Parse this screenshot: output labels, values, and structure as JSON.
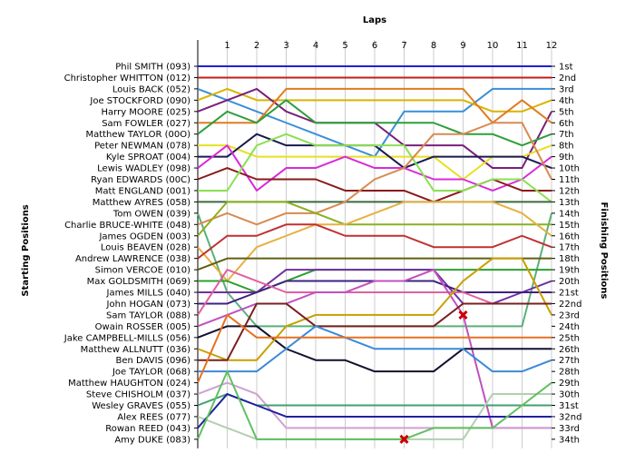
{
  "chart_data": {
    "type": "line",
    "title": "",
    "xlabel": "Laps",
    "ylabel_left": "Starting Positions",
    "ylabel_right": "Finishing Positions",
    "laps": [
      1,
      2,
      3,
      4,
      5,
      6,
      7,
      8,
      9,
      10,
      11,
      12
    ],
    "drivers": [
      "Phil SMITH (093)",
      "Christopher WHITTON (012)",
      "Louis BACK (052)",
      "Joe STOCKFORD (090)",
      "Harry MOORE (025)",
      "Sam FOWLER (027)",
      "Matthew TAYLOR (00O)",
      "Peter NEWMAN (078)",
      "Kyle SPROAT (004)",
      "Lewis WADLEY (098)",
      "Ryan EDWARDS (00C)",
      "Matt ENGLAND (001)",
      "Matthew AYRES (058)",
      "Tom OWEN (039)",
      "Charlie BRUCE-WHITE (048)",
      "James OGDEN (003)",
      "Louis BEAVEN (028)",
      "Andrew LAWRENCE (038)",
      "Simon VERCOE (010)",
      "Max GOLDSMITH (069)",
      "James MILLS (040)",
      "John HOGAN (073)",
      "Sam TAYLOR (088)",
      "Owain ROSSER (005)",
      "Jake CAMPBELL-MILLS (056)",
      "Matthew ALLNUTT (036)",
      "Ben DAVIS (096)",
      "Joe TAYLOR (068)",
      "Matthew HAUGHTON (024)",
      "Steve CHISHOLM (037)",
      "Wesley GRAVES (055)",
      "Alex REES (077)",
      "Rowan REED (043)",
      "Amy DUKE (083)"
    ],
    "finishing_labels": [
      "1st",
      "2nd",
      "3rd",
      "4th",
      "5th",
      "6th",
      "7th",
      "8th",
      "9th",
      "10th",
      "11th",
      "12th",
      "13th",
      "14th",
      "15th",
      "16th",
      "17th",
      "18th",
      "19th",
      "20th",
      "21st",
      "22nd",
      "23rd",
      "24th",
      "25th",
      "26th",
      "27th",
      "28th",
      "29th",
      "30th",
      "31st",
      "32nd",
      "33rd",
      "34th"
    ],
    "series": [
      {
        "color": "#1f1fd6",
        "positions": [
          1,
          1,
          1,
          1,
          1,
          1,
          1,
          1,
          1,
          1,
          1,
          1,
          1
        ]
      },
      {
        "color": "#c41a1a",
        "positions": [
          2,
          2,
          2,
          2,
          2,
          2,
          2,
          2,
          2,
          2,
          2,
          2,
          2
        ]
      },
      {
        "color": "#3a8fd8",
        "positions": [
          3,
          4,
          5,
          6,
          7,
          8,
          9,
          5,
          5,
          5,
          3,
          3,
          3
        ]
      },
      {
        "color": "#d9b400",
        "positions": [
          4,
          3,
          4,
          4,
          4,
          4,
          4,
          4,
          4,
          4,
          5,
          5,
          4
        ]
      },
      {
        "color": "#7a1f7a",
        "positions": [
          5,
          4,
          3,
          5,
          6,
          6,
          6,
          8,
          8,
          8,
          10,
          10,
          5
        ]
      },
      {
        "color": "#e07b1f",
        "positions": [
          6,
          6,
          6,
          3,
          3,
          3,
          3,
          3,
          3,
          3,
          6,
          4,
          6
        ]
      },
      {
        "color": "#2e9e3c",
        "positions": [
          7,
          5,
          6,
          4,
          6,
          6,
          6,
          6,
          6,
          7,
          7,
          8,
          7
        ]
      },
      {
        "color": "#e8e020",
        "positions": [
          8,
          8,
          9,
          9,
          9,
          9,
          9,
          9,
          9,
          11,
          9,
          9,
          8
        ]
      },
      {
        "color": "#1a1a50",
        "positions": [
          9,
          9,
          7,
          8,
          8,
          8,
          8,
          10,
          9,
          9,
          9,
          9,
          10
        ]
      },
      {
        "color": "#d82bd8",
        "positions": [
          10,
          8,
          12,
          10,
          10,
          9,
          10,
          10,
          11,
          11,
          12,
          11,
          9
        ]
      },
      {
        "color": "#8a1a1a",
        "positions": [
          11,
          10,
          11,
          11,
          11,
          12,
          12,
          12,
          13,
          12,
          11,
          12,
          12
        ]
      },
      {
        "color": "#8ae050",
        "positions": [
          12,
          12,
          8,
          7,
          8,
          8,
          8,
          8,
          12,
          12,
          11,
          11,
          13
        ]
      },
      {
        "color": "#3b6b3b",
        "positions": [
          13,
          13,
          13,
          13,
          13,
          13,
          13,
          13,
          13,
          13,
          13,
          13,
          13
        ]
      },
      {
        "color": "#5ab07a",
        "positions": [
          14,
          21,
          24,
          24,
          24,
          24,
          24,
          24,
          24,
          24,
          24,
          24,
          14
        ]
      },
      {
        "color": "#d88a50",
        "positions": [
          15,
          14,
          15,
          14,
          14,
          13,
          11,
          10,
          7,
          7,
          6,
          6,
          11
        ]
      },
      {
        "color": "#8ab020",
        "positions": [
          16,
          13,
          13,
          13,
          14,
          15,
          15,
          15,
          15,
          15,
          15,
          15,
          15
        ]
      },
      {
        "color": "#e8b040",
        "positions": [
          17,
          20,
          17,
          16,
          15,
          15,
          14,
          13,
          13,
          13,
          13,
          14,
          16
        ]
      },
      {
        "color": "#c03030",
        "positions": [
          18,
          16,
          16,
          15,
          15,
          16,
          16,
          16,
          17,
          17,
          17,
          16,
          17
        ]
      },
      {
        "color": "#606010",
        "positions": [
          19,
          18,
          18,
          18,
          18,
          18,
          18,
          18,
          18,
          18,
          18,
          18,
          18
        ]
      },
      {
        "color": "#2ca02c",
        "positions": [
          20,
          20,
          21,
          20,
          19,
          19,
          19,
          19,
          19,
          19,
          19,
          19,
          19
        ]
      },
      {
        "color": "#7030a0",
        "positions": [
          21,
          21,
          21,
          19,
          19,
          19,
          19,
          19,
          19,
          22,
          22,
          21,
          20
        ]
      },
      {
        "color": "#402080",
        "positions": [
          22,
          22,
          21,
          20,
          20,
          20,
          20,
          20,
          20,
          21,
          21,
          21,
          21
        ]
      },
      {
        "color": "#e060a0",
        "positions": [
          23,
          19,
          20,
          21,
          21,
          21,
          21,
          21,
          21,
          21,
          22,
          22,
          22
        ]
      },
      {
        "color": "#c050c0",
        "positions": [
          24,
          23,
          22,
          22,
          21,
          21,
          20,
          20,
          19,
          23,
          33,
          33,
          33
        ]
      },
      {
        "color": "#101030",
        "positions": [
          25,
          24,
          24,
          26,
          27,
          27,
          28,
          28,
          28,
          26,
          26,
          26,
          26
        ]
      },
      {
        "color": "#c8a000",
        "positions": [
          26,
          27,
          27,
          24,
          23,
          23,
          23,
          23,
          23,
          20,
          18,
          18,
          23
        ]
      },
      {
        "color": "#7a2020",
        "positions": [
          27,
          27,
          22,
          22,
          24,
          24,
          24,
          24,
          24,
          22,
          22,
          22,
          22
        ]
      },
      {
        "color": "#3a8ad8",
        "positions": [
          28,
          28,
          28,
          26,
          24,
          25,
          26,
          26,
          26,
          26,
          28,
          28,
          27
        ]
      },
      {
        "color": "#e87020",
        "positions": [
          29,
          23,
          25,
          25,
          25,
          25,
          25,
          25,
          25,
          25,
          25,
          25,
          25
        ]
      },
      {
        "color": "#d0a0d0",
        "positions": [
          30,
          29,
          30,
          33,
          33,
          33,
          33,
          33,
          33,
          33,
          33,
          33,
          33
        ]
      },
      {
        "color": "#40a070",
        "positions": [
          31,
          30,
          31,
          31,
          31,
          31,
          31,
          31,
          31,
          31,
          31,
          31,
          31
        ]
      },
      {
        "color": "#b0d0b0",
        "positions": [
          32,
          33,
          34,
          34,
          34,
          34,
          34,
          34,
          34,
          34,
          30,
          30,
          30
        ]
      },
      {
        "color": "#2020a0",
        "positions": [
          33,
          30,
          31,
          32,
          32,
          32,
          32,
          32,
          32,
          32,
          32,
          32,
          32
        ]
      },
      {
        "color": "#60c060",
        "positions": [
          34,
          28,
          34,
          34,
          34,
          34,
          34,
          34,
          33,
          33,
          33,
          31,
          29
        ]
      }
    ],
    "markers": [
      {
        "type": "x",
        "lap": 7,
        "position": 34,
        "color": "#cc0000"
      },
      {
        "type": "x",
        "lap": 9,
        "position": 23,
        "color": "#cc0000"
      }
    ]
  }
}
